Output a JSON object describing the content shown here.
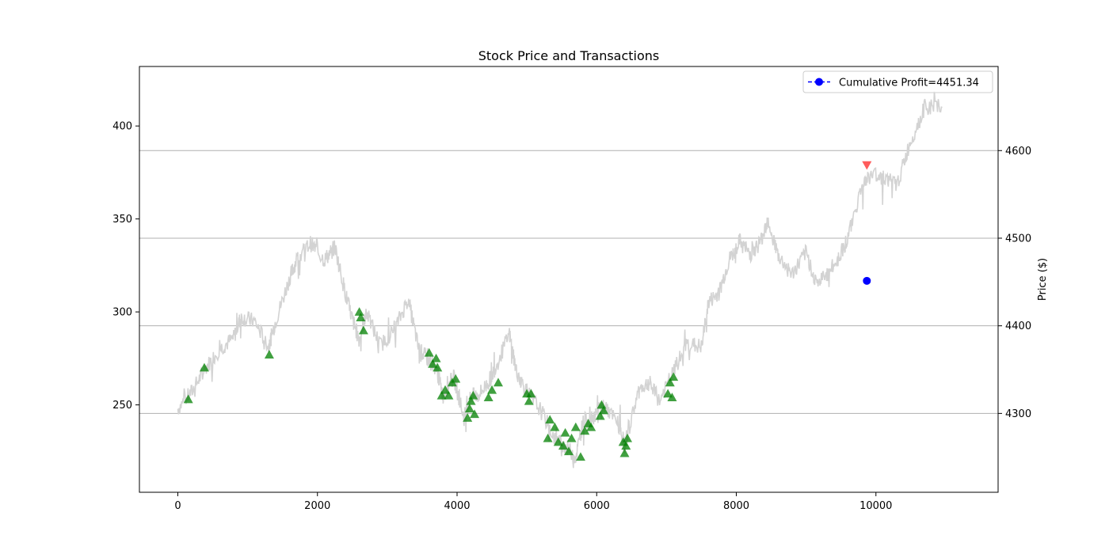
{
  "chart_data": {
    "type": "line",
    "title": "Stock Price and Transactions",
    "xlabel": "",
    "ylabel_left": "",
    "ylabel_right": "Price ($)",
    "xlim": [
      -550,
      11750
    ],
    "ylim_left": [
      203,
      432
    ],
    "ylim_right": [
      4210,
      4696
    ],
    "x_ticks": [
      0,
      2000,
      4000,
      6000,
      8000,
      10000
    ],
    "y_left_ticks": [
      250,
      300,
      350,
      400
    ],
    "y_right_ticks": [
      4300,
      4400,
      4500,
      4600
    ],
    "grid": "horizontal on right axis",
    "legend_position": "top-right",
    "colors": {
      "price": "#d3d3d3",
      "buy": "#008000",
      "sell": "#ff3333",
      "profit": "#0000ff",
      "grid": "#b0b0b0"
    },
    "price_series": {
      "name": "",
      "axis": "left",
      "x": [
        0,
        200,
        400,
        600,
        800,
        900,
        1100,
        1300,
        1400,
        1600,
        1700,
        1900,
        2100,
        2250,
        2400,
        2500,
        2600,
        2700,
        2900,
        3100,
        3300,
        3450,
        3550,
        3700,
        3800,
        3950,
        4100,
        4200,
        4300,
        4450,
        4550,
        4750,
        4850,
        5000,
        5200,
        5400,
        5550,
        5700,
        5800,
        5950,
        6100,
        6300,
        6400,
        6600,
        6750,
        6900,
        7100,
        7300,
        7500,
        7600,
        7750,
        7900,
        8050,
        8200,
        8350,
        8450,
        8600,
        8800,
        9000,
        9150,
        9300,
        9450,
        9600,
        9800,
        9950,
        10150,
        10300,
        10500,
        10700,
        10950
      ],
      "y": [
        248,
        257,
        270,
        280,
        286,
        297,
        295,
        281,
        295,
        318,
        328,
        337,
        328,
        335,
        310,
        296,
        285,
        300,
        282,
        290,
        307,
        280,
        276,
        270,
        255,
        265,
        243,
        255,
        255,
        262,
        270,
        288,
        268,
        257,
        247,
        232,
        228,
        222,
        240,
        244,
        250,
        240,
        228,
        258,
        262,
        252,
        268,
        283,
        281,
        305,
        310,
        328,
        338,
        331,
        338,
        350,
        330,
        320,
        332,
        315,
        320,
        328,
        340,
        368,
        374,
        372,
        368,
        392,
        410,
        410
      ]
    },
    "buy_markers": {
      "name": "",
      "axis": "left",
      "x": [
        150,
        380,
        1310,
        2600,
        2620,
        2660,
        3600,
        3650,
        3700,
        3720,
        3780,
        3830,
        3880,
        3930,
        3980,
        4150,
        4180,
        4200,
        4230,
        4250,
        4450,
        4500,
        4590,
        5000,
        5030,
        5060,
        5300,
        5330,
        5400,
        5450,
        5520,
        5550,
        5600,
        5640,
        5700,
        5770,
        5830,
        5880,
        5920,
        6050,
        6070,
        6100,
        6380,
        6400,
        6420,
        6440,
        7020,
        7050,
        7080,
        7100
      ],
      "y": [
        253,
        270,
        277,
        300,
        297,
        290,
        278,
        272,
        275,
        270,
        255,
        258,
        255,
        262,
        264,
        243,
        248,
        252,
        255,
        245,
        254,
        258,
        262,
        256,
        252,
        256,
        232,
        242,
        238,
        230,
        228,
        235,
        225,
        232,
        238,
        222,
        236,
        240,
        238,
        244,
        250,
        247,
        230,
        224,
        228,
        232,
        256,
        262,
        254,
        265
      ]
    },
    "sell_markers": {
      "name": "",
      "axis": "left",
      "x": [
        9870
      ],
      "y": [
        379
      ]
    },
    "profit_series": {
      "name": "Cumulative Profit=4451.34",
      "axis": "right",
      "x": [
        9870
      ],
      "y": [
        4451.34
      ]
    }
  }
}
